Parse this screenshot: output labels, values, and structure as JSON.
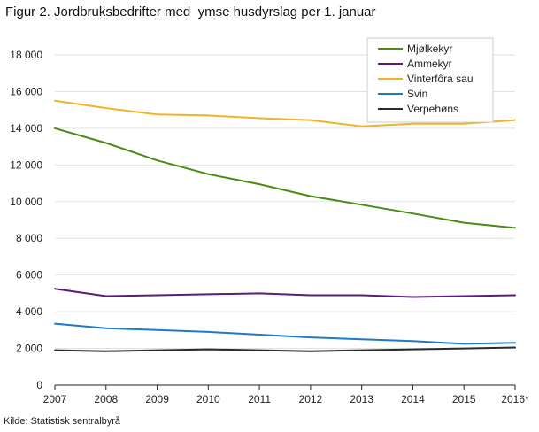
{
  "title": "Figur 2. Jordbruksbedrifter med  ymse husdyrslag per 1. januar",
  "source": "Kilde: Statistisk sentralbyrå",
  "chart_data": {
    "type": "line",
    "x": [
      "2007",
      "2008",
      "2009",
      "2010",
      "2011",
      "2012",
      "2013",
      "2014",
      "2015",
      "2016*"
    ],
    "ylim": [
      0,
      18000
    ],
    "yticks": [
      0,
      2000,
      4000,
      6000,
      8000,
      10000,
      12000,
      14000,
      16000,
      18000
    ],
    "ytick_labels": [
      "0",
      "2 000",
      "4 000",
      "6 000",
      "8 000",
      "10 000",
      "12 000",
      "14 000",
      "16 000",
      "18 000"
    ],
    "grid": "horizontal",
    "legend_position": "top-right",
    "series": [
      {
        "name": "Mjølkekyr",
        "color": "#4a8a12",
        "values": [
          14000,
          13200,
          12250,
          11500,
          10950,
          10300,
          9830,
          9350,
          8850,
          8570
        ]
      },
      {
        "name": "Ammekyr",
        "color": "#5c1a7e",
        "values": [
          5250,
          4850,
          4900,
          4950,
          5000,
          4900,
          4900,
          4800,
          4850,
          4900
        ]
      },
      {
        "name": "Vinterfôra sau",
        "color": "#f0b323",
        "values": [
          15500,
          15100,
          14750,
          14700,
          14550,
          14450,
          14100,
          14250,
          14250,
          14450
        ]
      },
      {
        "name": "Svin",
        "color": "#1f78c8",
        "values": [
          3350,
          3100,
          3000,
          2900,
          2750,
          2600,
          2500,
          2400,
          2250,
          2300
        ]
      },
      {
        "name": "Verpehøns",
        "color": "#2b2b2b",
        "values": [
          1900,
          1850,
          1900,
          1950,
          1900,
          1850,
          1900,
          1950,
          2000,
          2050
        ]
      }
    ]
  }
}
